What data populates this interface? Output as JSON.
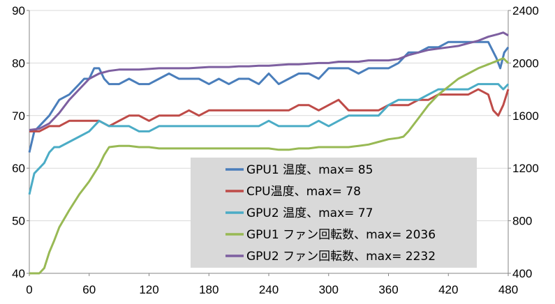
{
  "chart_data": {
    "type": "line",
    "title": "",
    "xlabel": "",
    "ylabel": "",
    "y2label": "",
    "xlim": [
      0,
      480
    ],
    "ylim": [
      40,
      90
    ],
    "y2lim": [
      400,
      2400
    ],
    "x_ticks": [
      "0",
      "60",
      "120",
      "180",
      "240",
      "300",
      "360",
      "420",
      "480"
    ],
    "y_ticks": [
      "40",
      "50",
      "60",
      "70",
      "80",
      "90"
    ],
    "y2_ticks": [
      "400",
      "800",
      "1200",
      "1600",
      "2000",
      "2400"
    ],
    "grid": "horizontal",
    "legend_position": "bottom-center",
    "legend": {
      "background": "#d9d9d9",
      "entries": [
        {
          "label": "GPU1 温度、max= 85",
          "color": "#4a7ebb"
        },
        {
          "label": "CPU温度、max= 78",
          "color": "#be4b48"
        },
        {
          "label": "GPU2 温度、max= 77",
          "color": "#4bacc6"
        },
        {
          "label": "GPU1 ファン回転数、max= 2036",
          "color": "#98b954"
        },
        {
          "label": "GPU2 ファン回転数、max= 2232",
          "color": "#7d5fa0"
        }
      ]
    },
    "series": [
      {
        "name": "GPU1 温度、max= 85",
        "axis": "left",
        "color": "#4a7ebb",
        "points": [
          [
            0,
            63
          ],
          [
            5,
            67
          ],
          [
            10,
            68
          ],
          [
            20,
            70
          ],
          [
            30,
            73
          ],
          [
            40,
            74
          ],
          [
            50,
            76
          ],
          [
            55,
            77
          ],
          [
            60,
            77
          ],
          [
            65,
            79
          ],
          [
            70,
            79
          ],
          [
            75,
            77
          ],
          [
            80,
            76
          ],
          [
            90,
            76
          ],
          [
            100,
            77
          ],
          [
            110,
            76
          ],
          [
            120,
            76
          ],
          [
            130,
            77
          ],
          [
            140,
            78
          ],
          [
            150,
            77
          ],
          [
            160,
            77
          ],
          [
            170,
            77
          ],
          [
            180,
            76
          ],
          [
            190,
            77
          ],
          [
            200,
            76
          ],
          [
            210,
            77
          ],
          [
            220,
            77
          ],
          [
            230,
            76
          ],
          [
            240,
            78
          ],
          [
            250,
            76
          ],
          [
            260,
            77
          ],
          [
            270,
            78
          ],
          [
            280,
            78
          ],
          [
            290,
            77
          ],
          [
            300,
            79
          ],
          [
            310,
            79
          ],
          [
            320,
            79
          ],
          [
            330,
            78
          ],
          [
            340,
            79
          ],
          [
            350,
            79
          ],
          [
            360,
            79
          ],
          [
            370,
            80
          ],
          [
            380,
            82
          ],
          [
            390,
            82
          ],
          [
            400,
            83
          ],
          [
            410,
            83
          ],
          [
            420,
            84
          ],
          [
            430,
            84
          ],
          [
            440,
            84
          ],
          [
            450,
            84
          ],
          [
            460,
            84
          ],
          [
            468,
            81
          ],
          [
            472,
            79
          ],
          [
            476,
            82
          ],
          [
            480,
            83
          ]
        ]
      },
      {
        "name": "CPU温度、max= 78",
        "axis": "left",
        "color": "#be4b48",
        "points": [
          [
            0,
            67
          ],
          [
            10,
            67
          ],
          [
            20,
            68
          ],
          [
            30,
            68
          ],
          [
            40,
            69
          ],
          [
            50,
            69
          ],
          [
            60,
            69
          ],
          [
            70,
            69
          ],
          [
            80,
            68
          ],
          [
            90,
            69
          ],
          [
            100,
            70
          ],
          [
            110,
            70
          ],
          [
            120,
            69
          ],
          [
            130,
            70
          ],
          [
            140,
            70
          ],
          [
            150,
            70
          ],
          [
            160,
            71
          ],
          [
            170,
            70
          ],
          [
            180,
            71
          ],
          [
            190,
            71
          ],
          [
            200,
            71
          ],
          [
            210,
            71
          ],
          [
            220,
            71
          ],
          [
            230,
            71
          ],
          [
            240,
            71
          ],
          [
            250,
            71
          ],
          [
            260,
            71
          ],
          [
            270,
            72
          ],
          [
            280,
            72
          ],
          [
            290,
            71
          ],
          [
            300,
            72
          ],
          [
            310,
            73
          ],
          [
            320,
            71
          ],
          [
            330,
            71
          ],
          [
            340,
            71
          ],
          [
            350,
            71
          ],
          [
            360,
            72
          ],
          [
            370,
            72
          ],
          [
            380,
            72
          ],
          [
            390,
            73
          ],
          [
            400,
            73
          ],
          [
            410,
            74
          ],
          [
            420,
            74
          ],
          [
            430,
            74
          ],
          [
            440,
            74
          ],
          [
            450,
            75
          ],
          [
            460,
            74
          ],
          [
            465,
            71
          ],
          [
            470,
            70
          ],
          [
            475,
            72
          ],
          [
            480,
            75
          ]
        ]
      },
      {
        "name": "GPU2 温度、max= 77",
        "axis": "left",
        "color": "#4bacc6",
        "points": [
          [
            0,
            55
          ],
          [
            5,
            59
          ],
          [
            10,
            60
          ],
          [
            15,
            61
          ],
          [
            20,
            63
          ],
          [
            25,
            64
          ],
          [
            30,
            64
          ],
          [
            40,
            65
          ],
          [
            50,
            66
          ],
          [
            60,
            67
          ],
          [
            70,
            69
          ],
          [
            80,
            68
          ],
          [
            90,
            68
          ],
          [
            100,
            68
          ],
          [
            110,
            67
          ],
          [
            120,
            67
          ],
          [
            130,
            68
          ],
          [
            140,
            68
          ],
          [
            150,
            68
          ],
          [
            160,
            68
          ],
          [
            170,
            68
          ],
          [
            180,
            68
          ],
          [
            190,
            68
          ],
          [
            200,
            68
          ],
          [
            210,
            68
          ],
          [
            220,
            68
          ],
          [
            230,
            68
          ],
          [
            240,
            69
          ],
          [
            250,
            68
          ],
          [
            260,
            68
          ],
          [
            270,
            68
          ],
          [
            280,
            68
          ],
          [
            290,
            69
          ],
          [
            300,
            68
          ],
          [
            310,
            69
          ],
          [
            320,
            70
          ],
          [
            330,
            70
          ],
          [
            340,
            70
          ],
          [
            350,
            70
          ],
          [
            360,
            72
          ],
          [
            370,
            73
          ],
          [
            380,
            73
          ],
          [
            390,
            73
          ],
          [
            400,
            74
          ],
          [
            410,
            75
          ],
          [
            420,
            75
          ],
          [
            430,
            75
          ],
          [
            440,
            75
          ],
          [
            450,
            76
          ],
          [
            460,
            76
          ],
          [
            470,
            76
          ],
          [
            475,
            75
          ],
          [
            480,
            76
          ]
        ]
      },
      {
        "name": "GPU1 ファン回転数、max= 2036",
        "axis": "right",
        "color": "#98b954",
        "points": [
          [
            0,
            400
          ],
          [
            5,
            400
          ],
          [
            10,
            400
          ],
          [
            15,
            440
          ],
          [
            20,
            560
          ],
          [
            25,
            650
          ],
          [
            30,
            750
          ],
          [
            40,
            880
          ],
          [
            50,
            1000
          ],
          [
            60,
            1100
          ],
          [
            70,
            1220
          ],
          [
            75,
            1300
          ],
          [
            80,
            1360
          ],
          [
            90,
            1370
          ],
          [
            100,
            1370
          ],
          [
            110,
            1360
          ],
          [
            120,
            1360
          ],
          [
            130,
            1350
          ],
          [
            140,
            1350
          ],
          [
            150,
            1350
          ],
          [
            160,
            1350
          ],
          [
            170,
            1350
          ],
          [
            180,
            1350
          ],
          [
            190,
            1350
          ],
          [
            200,
            1350
          ],
          [
            210,
            1350
          ],
          [
            220,
            1350
          ],
          [
            230,
            1350
          ],
          [
            240,
            1350
          ],
          [
            250,
            1340
          ],
          [
            260,
            1340
          ],
          [
            270,
            1350
          ],
          [
            280,
            1350
          ],
          [
            290,
            1360
          ],
          [
            300,
            1360
          ],
          [
            310,
            1360
          ],
          [
            320,
            1360
          ],
          [
            330,
            1370
          ],
          [
            340,
            1380
          ],
          [
            350,
            1400
          ],
          [
            360,
            1420
          ],
          [
            370,
            1430
          ],
          [
            375,
            1440
          ],
          [
            380,
            1480
          ],
          [
            390,
            1580
          ],
          [
            400,
            1680
          ],
          [
            410,
            1760
          ],
          [
            420,
            1820
          ],
          [
            430,
            1880
          ],
          [
            440,
            1920
          ],
          [
            450,
            1960
          ],
          [
            460,
            1990
          ],
          [
            470,
            2020
          ],
          [
            475,
            2036
          ],
          [
            480,
            2000
          ]
        ]
      },
      {
        "name": "GPU2 ファン回転数、max= 2232",
        "axis": "right",
        "color": "#7d5fa0",
        "points": [
          [
            0,
            1490
          ],
          [
            10,
            1500
          ],
          [
            20,
            1540
          ],
          [
            30,
            1620
          ],
          [
            40,
            1720
          ],
          [
            50,
            1800
          ],
          [
            60,
            1880
          ],
          [
            70,
            1920
          ],
          [
            80,
            1940
          ],
          [
            90,
            1950
          ],
          [
            100,
            1950
          ],
          [
            110,
            1950
          ],
          [
            120,
            1955
          ],
          [
            130,
            1960
          ],
          [
            140,
            1960
          ],
          [
            150,
            1960
          ],
          [
            160,
            1960
          ],
          [
            170,
            1965
          ],
          [
            180,
            1970
          ],
          [
            190,
            1970
          ],
          [
            200,
            1970
          ],
          [
            210,
            1975
          ],
          [
            220,
            1975
          ],
          [
            230,
            1980
          ],
          [
            240,
            1980
          ],
          [
            250,
            1985
          ],
          [
            260,
            1990
          ],
          [
            270,
            1990
          ],
          [
            280,
            1995
          ],
          [
            290,
            2000
          ],
          [
            300,
            2000
          ],
          [
            310,
            2010
          ],
          [
            320,
            2010
          ],
          [
            330,
            2010
          ],
          [
            340,
            2020
          ],
          [
            350,
            2020
          ],
          [
            360,
            2020
          ],
          [
            370,
            2030
          ],
          [
            380,
            2060
          ],
          [
            390,
            2080
          ],
          [
            400,
            2100
          ],
          [
            410,
            2110
          ],
          [
            420,
            2120
          ],
          [
            430,
            2130
          ],
          [
            440,
            2150
          ],
          [
            450,
            2170
          ],
          [
            460,
            2200
          ],
          [
            470,
            2220
          ],
          [
            475,
            2232
          ],
          [
            480,
            2210
          ]
        ]
      }
    ]
  }
}
